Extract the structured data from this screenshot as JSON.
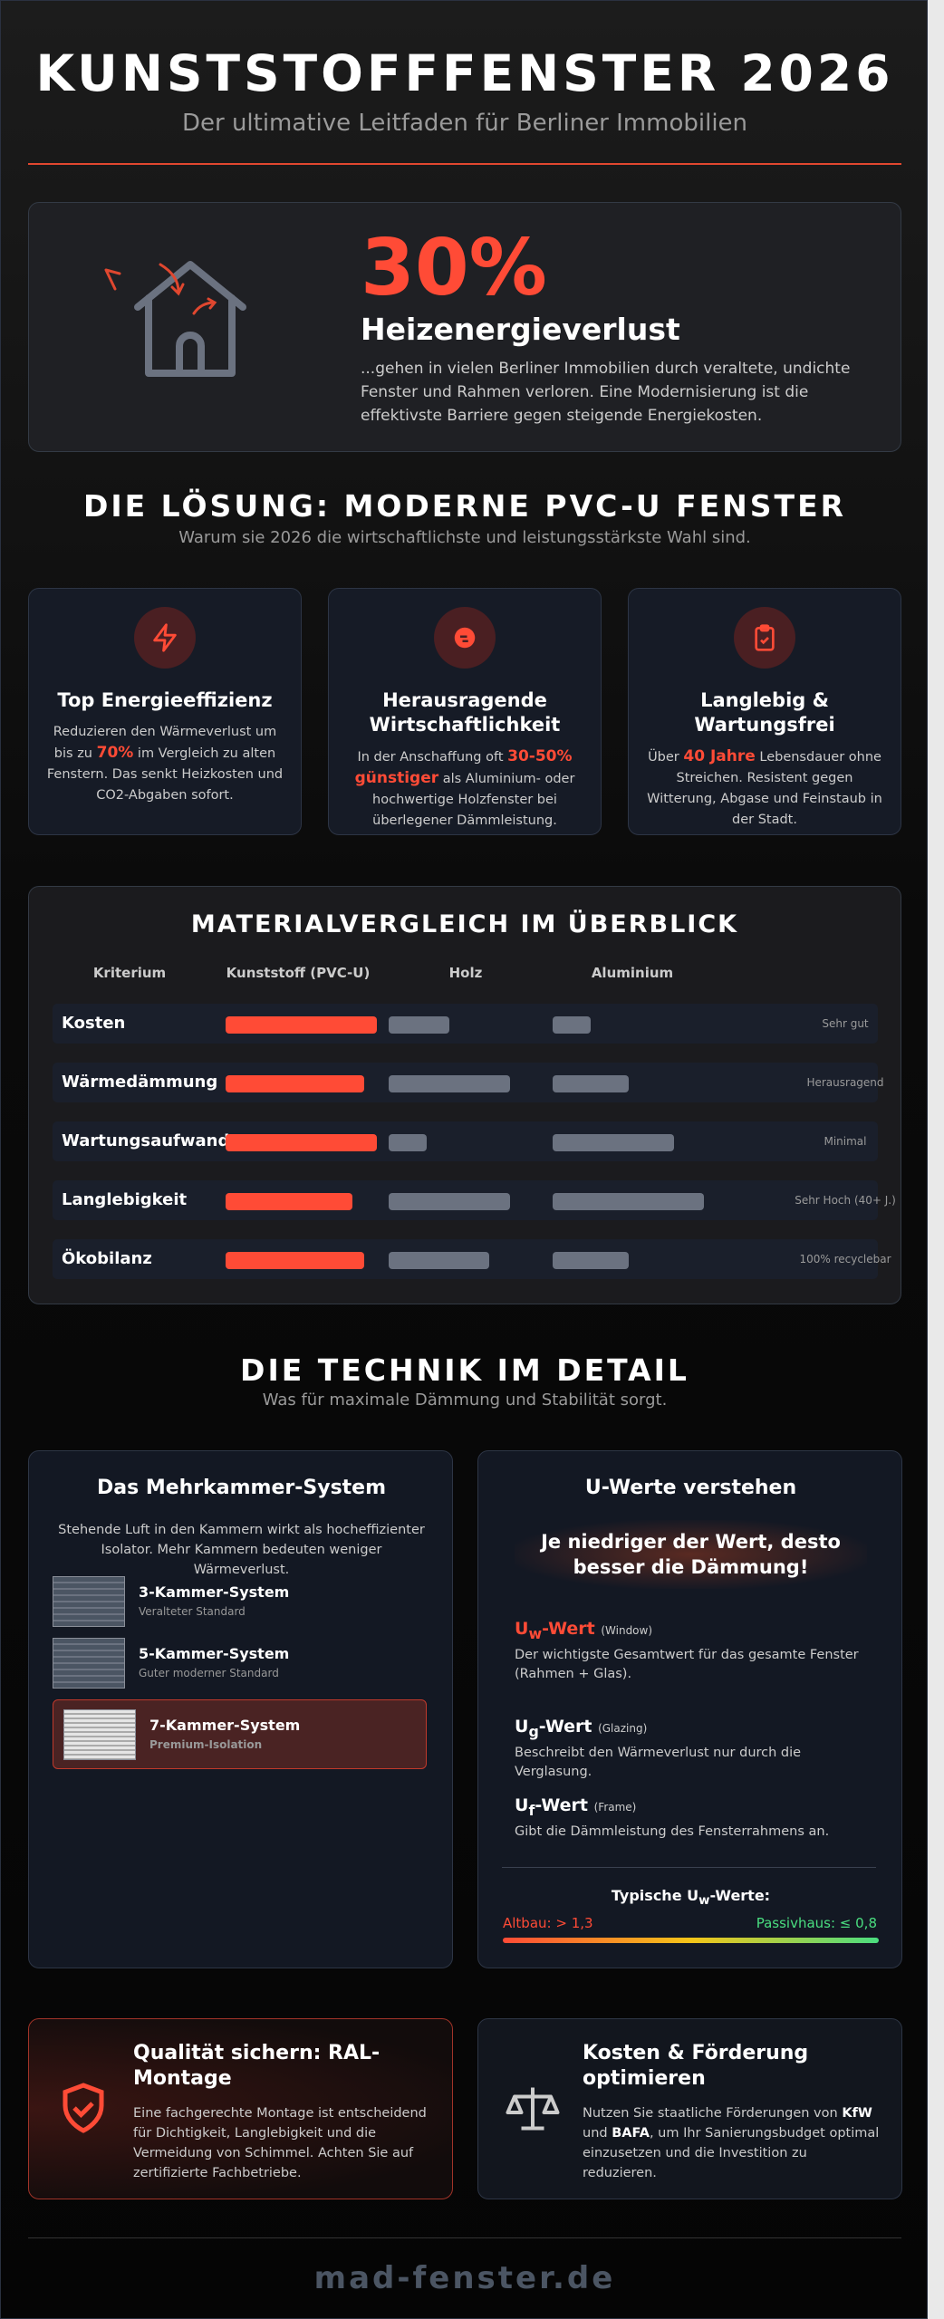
{
  "header": {
    "title": "KUNSTSTOFFFENSTER 2026",
    "subtitle": "Der ultimative Leitfaden für Berliner Immobilien"
  },
  "hero": {
    "stat": "30%",
    "heading": "Heizenergieverlust",
    "text": "...gehen in vielen Berliner Immobilien durch veraltete, undichte Fenster und Rahmen verloren. Eine Modernisierung ist die effektivste Barriere gegen steigende Energiekosten."
  },
  "solution": {
    "title": "DIE LÖSUNG: MODERNE PVC-U FENSTER",
    "subtitle": "Warum sie 2026 die wirtschaftlichste und leistungsstärkste Wahl sind.",
    "cards": [
      {
        "title": "Top Energieeffizienz",
        "before": "Reduzieren den Wärmeverlust um bis zu ",
        "highlight": "70%",
        "after": " im Vergleich zu alten Fenstern. Das senkt Heizkosten und CO2-Abgaben sofort."
      },
      {
        "title": "Herausragende Wirtschaftlichkeit",
        "before": "In der Anschaffung oft ",
        "highlight": "30-50% günstiger",
        "after": " als Aluminium- oder hochwertige Holzfenster bei überlegener Dämmleistung."
      },
      {
        "title": "Langlebig & Wartungsfrei",
        "before": "Über ",
        "highlight": "40 Jahre",
        "after": " Lebensdauer ohne Streichen. Resistent gegen Witterung, Abgase und Feinstaub in der Stadt."
      }
    ]
  },
  "comparison": {
    "title": "MATERIALVERGLEICH IM ÜBERBLICK",
    "headers": [
      "Kriterium",
      "Kunststoff (PVC-U)",
      "Holz",
      "Aluminium"
    ],
    "rows": [
      {
        "label": "Kosten",
        "note": "Sehr gut"
      },
      {
        "label": "Wärmedämmung",
        "note": "Herausragend"
      },
      {
        "label": "Wartungsaufwand",
        "note": "Minimal"
      },
      {
        "label": "Langlebigkeit",
        "note": "Sehr Hoch (40+ J.)"
      },
      {
        "label": "Ökobilanz",
        "note": "100% recyclebar"
      }
    ]
  },
  "technik": {
    "title": "DIE TECHNIK IM DETAIL",
    "subtitle": "Was für maximale Dämmung und Stabilität sorgt.",
    "chambers": {
      "title": "Das Mehrkammer-System",
      "text": "Stehende Luft in den Kammern wirkt als hocheffizienter Isolator. Mehr Kammern bedeuten weniger Wärmeverlust.",
      "items": [
        {
          "name": "3-Kammer-System",
          "desc": "Veralteter Standard"
        },
        {
          "name": "5-Kammer-System",
          "desc": "Guter moderner Standard"
        },
        {
          "name": "7-Kammer-System",
          "desc": "Premium-Isolation"
        }
      ]
    },
    "uvalues": {
      "title": "U-Werte verstehen",
      "callout": "Je niedriger der Wert, desto besser die Dämmung!",
      "items": [
        {
          "symbol": "U",
          "sub": "w",
          "suffix": "-Wert",
          "note": "(Window)",
          "text": "Der wichtigste Gesamtwert für das gesamte Fenster (Rahmen + Glas)."
        },
        {
          "symbol": "U",
          "sub": "g",
          "suffix": "-Wert",
          "note": "(Glazing)",
          "text": "Beschreibt den Wärmeverlust nur durch die Verglasung."
        },
        {
          "symbol": "U",
          "sub": "f",
          "suffix": "-Wert",
          "note": "(Frame)",
          "text": "Gibt die Dämmleistung des Fensterrahmens an."
        }
      ],
      "typical": {
        "before": "Typische U",
        "sub": "w",
        "after": "-Werte:"
      },
      "scale_left": "Altbau: > 1,3",
      "scale_right": "Passivhaus: ≤ 0,8"
    }
  },
  "bottom": {
    "quality": {
      "title": "Qualität sichern: RAL-Montage",
      "text": "Eine fachgerechte Montage ist entscheidend für Dichtigkeit, Langlebigkeit und die Vermeidung von Schimmel. Achten Sie auf zertifizierte Fachbetriebe."
    },
    "funding": {
      "title": "Kosten & Förderung optimieren",
      "t1": "Nutzen Sie staatliche Förderungen von ",
      "b1": "KfW",
      "t2": " und ",
      "b2": "BAFA",
      "t3": ", um Ihr Sanierungsbudget optimal einzusetzen und die Investition zu reduzieren."
    }
  },
  "footer": {
    "domain": "mad-fenster.de"
  }
}
